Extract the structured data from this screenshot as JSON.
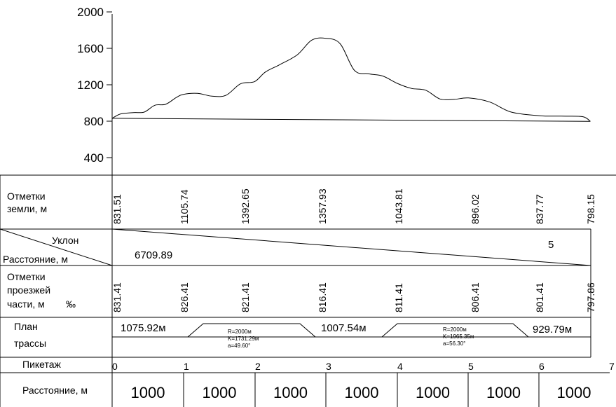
{
  "chart_data": {
    "type": "line",
    "title": "",
    "ylim": [
      400,
      2000
    ],
    "y_ticks": [
      "2000",
      "1600",
      "1200",
      "800",
      "400"
    ],
    "y_tick_values": [
      2000,
      1600,
      1200,
      800,
      400
    ],
    "series": [
      {
        "name": "",
        "x": [
          0,
          0.12,
          0.3,
          0.45,
          0.6,
          0.75,
          0.9,
          1.0,
          1.2,
          1.4,
          1.6,
          1.8,
          2.0,
          2.15,
          2.35,
          2.6,
          2.8,
          3.0,
          3.2,
          3.4,
          3.6,
          3.8,
          4.0,
          4.2,
          4.4,
          4.6,
          4.8,
          5.0,
          5.3,
          5.6,
          6.0,
          6.3,
          6.6,
          6.71
        ],
        "values": [
          831.51,
          880,
          895,
          900,
          975,
          985,
          1060,
          1095,
          1105.74,
          1075,
          1085,
          1210,
          1235,
          1340,
          1420,
          1530,
          1690,
          1710,
          1650,
          1357.93,
          1320,
          1295,
          1215,
          1160,
          1140,
          1043.81,
          1040,
          1055,
          1010,
          900,
          860,
          855,
          850,
          798.15
        ]
      },
      {
        "name": "",
        "x": [
          0,
          6.71
        ],
        "values": [
          831.41,
          797.86
        ]
      }
    ]
  },
  "rows": {
    "ground_title": [
      "Отметки",
      "земли, м"
    ],
    "ground_values": [
      "831.51",
      "1105.74",
      "1392.65",
      "1357.93",
      "1043.81",
      "896.02",
      "837.77",
      "798.15"
    ],
    "slope_label": "Уклон",
    "distance_label": "Расстояние, м",
    "slope_distance": "6709.89",
    "slope_value": "5",
    "road_title": [
      "Отметки",
      "проезжей",
      "части, м"
    ],
    "permille": "‰",
    "road_values": [
      "831.41",
      "826.41",
      "821.41",
      "816.41",
      "811.41",
      "806.41",
      "801.41",
      "797.86"
    ],
    "plan_title": [
      "План",
      "трассы"
    ],
    "plan_straights": [
      "1075.92м",
      "1007.54м",
      "929.79м"
    ],
    "curve1": [
      "R=2000м",
      "K=1731.29м",
      "a=49.60°"
    ],
    "curve2": [
      "R=2000м",
      "K=1965.35м",
      "a=56.30°"
    ],
    "picket_label": "Пикетаж",
    "pickets": [
      "0",
      "1",
      "2",
      "3",
      "4",
      "5",
      "6",
      "7"
    ],
    "dist_label": "Расстояние, м",
    "distances": [
      "1000",
      "1000",
      "1000",
      "1000",
      "1000",
      "1000",
      "1000"
    ]
  }
}
